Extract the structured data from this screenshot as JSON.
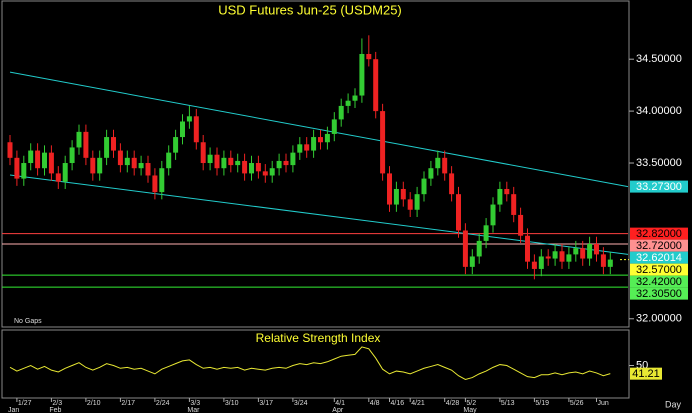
{
  "chart_data": {
    "type": "candlestick",
    "title": "USD  Futures  Jun-25  (USDM25)",
    "categories": [
      null,
      "1/27",
      null,
      null,
      null,
      null,
      "2/3",
      null,
      null,
      null,
      null,
      "2/10",
      null,
      null,
      null,
      null,
      "2/17",
      null,
      null,
      null,
      null,
      "2/24",
      null,
      null,
      null,
      null,
      "3/3",
      null,
      null,
      null,
      null,
      "3/10",
      null,
      null,
      null,
      null,
      "3/17",
      null,
      null,
      null,
      null,
      "3/24",
      null,
      null,
      null,
      null,
      null,
      "4/1",
      null,
      null,
      null,
      null,
      "4/8",
      null,
      null,
      "4/16",
      null,
      null,
      "4/21",
      null,
      null,
      null,
      null,
      "4/28",
      null,
      null,
      "5/2",
      null,
      null,
      null,
      null,
      "5/13",
      null,
      null,
      null,
      null,
      "5/19",
      null,
      null,
      null,
      null,
      "5/26",
      null,
      null,
      null,
      "Jun",
      null,
      null
    ],
    "month_labels": [
      "Jan",
      "Feb",
      "Mar",
      "Apr",
      "May"
    ],
    "open": [
      33.7,
      33.55,
      33.35,
      33.5,
      33.62,
      33.45,
      33.6,
      33.4,
      33.32,
      33.5,
      33.65,
      33.8,
      33.55,
      33.4,
      33.55,
      33.75,
      33.62,
      33.48,
      33.55,
      33.45,
      33.5,
      33.38,
      33.22,
      33.45,
      33.6,
      33.75,
      33.9,
      33.95,
      33.7,
      33.5,
      33.58,
      33.45,
      33.55,
      33.48,
      33.52,
      33.4,
      33.5,
      33.42,
      33.38,
      33.45,
      33.52,
      33.48,
      33.6,
      33.68,
      33.62,
      33.75,
      33.7,
      33.78,
      33.92,
      34.05,
      34.1,
      34.15,
      34.55,
      34.5,
      34.0,
      33.4,
      33.1,
      33.25,
      33.15,
      33.05,
      33.2,
      33.35,
      33.45,
      33.55,
      33.4,
      33.2,
      32.85,
      32.5,
      32.6,
      32.75,
      32.9,
      33.1,
      33.25,
      33.2,
      33.0,
      32.8,
      32.55,
      32.48,
      32.6,
      32.58,
      32.65,
      32.55,
      32.62,
      32.68,
      32.58,
      32.72,
      32.62,
      32.5
    ],
    "high": [
      33.77,
      33.62,
      33.57,
      33.69,
      33.69,
      33.67,
      33.67,
      33.47,
      33.57,
      33.72,
      33.87,
      33.87,
      33.62,
      33.62,
      33.82,
      33.82,
      33.69,
      33.62,
      33.62,
      33.57,
      33.57,
      33.45,
      33.52,
      33.67,
      33.82,
      33.97,
      34.05,
      34.02,
      33.77,
      33.65,
      33.65,
      33.62,
      33.62,
      33.59,
      33.59,
      33.57,
      33.57,
      33.49,
      33.52,
      33.59,
      33.59,
      33.67,
      33.75,
      33.75,
      33.82,
      33.82,
      33.85,
      33.99,
      34.12,
      34.17,
      34.22,
      34.7,
      34.73,
      34.57,
      34.07,
      33.47,
      33.32,
      33.32,
      33.22,
      33.27,
      33.42,
      33.52,
      33.62,
      33.62,
      33.47,
      33.27,
      32.92,
      32.67,
      32.82,
      32.97,
      33.17,
      33.32,
      33.32,
      33.27,
      33.07,
      32.87,
      32.62,
      32.67,
      32.67,
      32.72,
      32.72,
      32.69,
      32.75,
      32.75,
      32.79,
      32.79,
      32.69,
      32.64
    ],
    "low": [
      33.48,
      33.28,
      33.28,
      33.43,
      33.38,
      33.38,
      33.33,
      33.25,
      33.25,
      33.43,
      33.58,
      33.48,
      33.33,
      33.33,
      33.48,
      33.55,
      33.41,
      33.41,
      33.38,
      33.38,
      33.31,
      33.15,
      33.15,
      33.38,
      33.53,
      33.68,
      33.83,
      33.63,
      33.43,
      33.43,
      33.38,
      33.38,
      33.41,
      33.41,
      33.33,
      33.33,
      33.35,
      33.31,
      33.31,
      33.38,
      33.41,
      33.41,
      33.53,
      33.55,
      33.55,
      33.63,
      33.63,
      33.71,
      33.85,
      33.98,
      34.03,
      34.08,
      34.43,
      33.93,
      33.33,
      33.03,
      33.03,
      33.08,
      32.98,
      32.98,
      33.13,
      33.28,
      33.38,
      33.33,
      33.13,
      32.78,
      32.43,
      32.43,
      32.53,
      32.68,
      32.83,
      33.03,
      33.13,
      32.93,
      32.73,
      32.48,
      32.38,
      32.41,
      32.51,
      32.51,
      32.48,
      32.48,
      32.55,
      32.51,
      32.51,
      32.55,
      32.43,
      32.43
    ],
    "close": [
      33.55,
      33.35,
      33.5,
      33.62,
      33.45,
      33.6,
      33.4,
      33.32,
      33.5,
      33.65,
      33.8,
      33.55,
      33.4,
      33.55,
      33.75,
      33.62,
      33.48,
      33.55,
      33.45,
      33.5,
      33.38,
      33.22,
      33.45,
      33.6,
      33.75,
      33.9,
      33.95,
      33.7,
      33.5,
      33.58,
      33.45,
      33.55,
      33.48,
      33.52,
      33.4,
      33.5,
      33.42,
      33.38,
      33.45,
      33.52,
      33.48,
      33.6,
      33.68,
      33.62,
      33.75,
      33.7,
      33.78,
      33.92,
      34.05,
      34.1,
      34.15,
      34.55,
      34.5,
      34.0,
      33.4,
      33.1,
      33.25,
      33.15,
      33.05,
      33.2,
      33.35,
      33.45,
      33.55,
      33.4,
      33.2,
      32.85,
      32.5,
      32.6,
      32.75,
      32.9,
      33.1,
      33.25,
      33.2,
      33.0,
      32.8,
      32.55,
      32.48,
      32.6,
      32.58,
      32.65,
      32.55,
      32.62,
      32.68,
      32.58,
      32.72,
      32.62,
      32.5,
      32.57
    ],
    "up_color": "#33cc33",
    "down_color": "#ee2222",
    "ylim": [
      31.94,
      35.07
    ],
    "yticks": [
      {
        "value": 32.0,
        "label": "32.00000"
      },
      {
        "value": 33.5,
        "label": "33.50000"
      },
      {
        "value": 34.0,
        "label": "34.00000"
      },
      {
        "value": 34.5,
        "label": "34.50000"
      }
    ],
    "levels": [
      {
        "value": 32.82,
        "label": "32.82000",
        "color": "#ff4040",
        "label_color": "#ff2020"
      },
      {
        "value": 32.72,
        "label": "32.72000",
        "color": "#ffb0b0",
        "label_color": "#ff9090"
      },
      {
        "value": 32.42,
        "label": "32.42000",
        "color": "#33ee33",
        "label_color": "#55ee55"
      },
      {
        "value": 32.305,
        "label": "32.30500",
        "color": "#33ee33",
        "label_color": "#55ee55"
      }
    ],
    "trend_lines": [
      {
        "start": 34.375,
        "end": 33.273,
        "label": "33.27300",
        "color": "#22cccc"
      },
      {
        "start": 33.385,
        "end": 32.62014,
        "label": "32.62014",
        "color": "#22cccc"
      }
    ],
    "last_price": {
      "value": 32.57,
      "label": "32.57000",
      "color": "#ffff33"
    },
    "note": "No Gaps",
    "period": "Day",
    "rsi": {
      "title": "Relative Strength Index",
      "color": "#e8e833",
      "ylim": [
        15,
        85
      ],
      "yticks": [
        50
      ],
      "last_label": "41.21",
      "values": [
        48,
        44,
        47,
        50,
        46,
        49,
        45,
        43,
        47,
        50,
        53,
        48,
        45,
        48,
        52,
        50,
        47,
        48,
        46,
        47,
        44,
        41,
        46,
        49,
        52,
        55,
        56,
        51,
        47,
        48,
        46,
        48,
        47,
        48,
        45,
        47,
        46,
        45,
        47,
        48,
        47,
        50,
        52,
        51,
        53,
        52,
        54,
        57,
        60,
        61,
        62,
        70,
        68,
        58,
        46,
        41,
        44,
        43,
        41,
        44,
        47,
        49,
        51,
        48,
        45,
        39,
        35,
        37,
        41,
        44,
        48,
        51,
        50,
        46,
        42,
        38,
        37,
        40,
        40,
        42,
        40,
        42,
        43,
        41,
        44,
        42,
        39,
        41.21
      ]
    }
  }
}
